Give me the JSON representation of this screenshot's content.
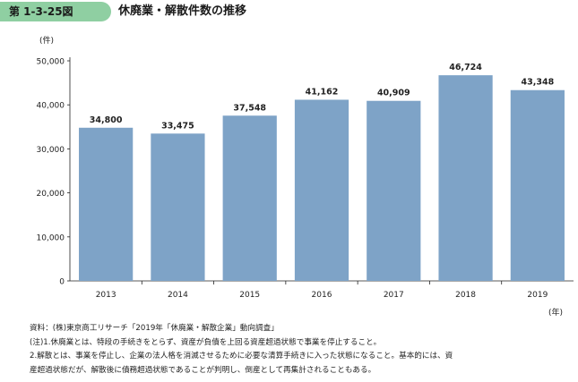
{
  "figure": {
    "number": "第 1-3-25図",
    "title": "休廃業・解散件数の推移"
  },
  "chart_data": {
    "type": "bar",
    "categories": [
      "2013",
      "2014",
      "2015",
      "2016",
      "2017",
      "2018",
      "2019"
    ],
    "values": [
      34800,
      33475,
      37548,
      41162,
      40909,
      46724,
      43348
    ],
    "value_labels": [
      "34,800",
      "33,475",
      "37,548",
      "41,162",
      "40,909",
      "46,724",
      "43,348"
    ],
    "y_unit": "(件)",
    "x_unit": "(年)",
    "ylim": [
      0,
      50000
    ],
    "yticks": [
      0,
      10000,
      20000,
      30000,
      40000,
      50000
    ],
    "ytick_labels": [
      "0",
      "10,000",
      "20,000",
      "30,000",
      "40,000",
      "50,000"
    ],
    "bar_color": "#7ea3c7",
    "grid": false,
    "legend": "none"
  },
  "notes": {
    "source": "資料：(株)東京商工リサーチ「2019年「休廃業・解散企業」動向調査」",
    "note1": "(注)1.休廃業とは、特段の手続きをとらず、資産が負債を上回る資産超過状態で事業を停止すること。",
    "note2": "2.解散とは、事業を停止し、企業の法人格を消滅させるために必要な清算手続きに入った状態になること。基本的には、資",
    "note2_cont": "産超過状態だが、解散後に債務超過状態であることが判明し、倒産として再集計されることもある。"
  }
}
